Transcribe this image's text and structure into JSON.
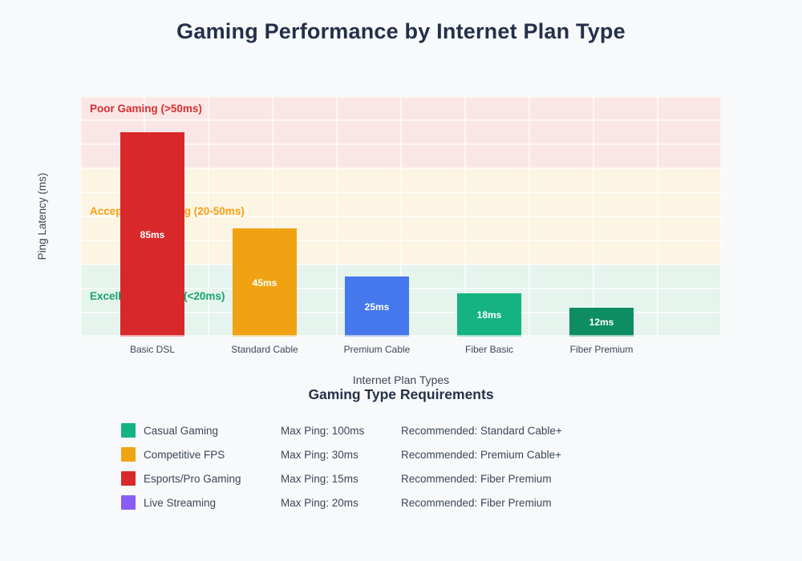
{
  "page": {
    "background_color": "#f8f9fb",
    "title_color": "#243049"
  },
  "chart_data": {
    "type": "bar",
    "title": "Gaming Performance by Internet Plan Type",
    "xlabel": "Internet Plan Types",
    "ylabel": "Ping Latency (ms)",
    "ylim": [
      0,
      100
    ],
    "grid": true,
    "categories": [
      "Basic DSL",
      "Standard Cable",
      "Premium Cable",
      "Fiber Basic",
      "Fiber Premium"
    ],
    "values": [
      85,
      45,
      25,
      18,
      12
    ],
    "bar_labels": [
      "85ms",
      "45ms",
      "25ms",
      "18ms",
      "12ms"
    ],
    "bar_colors": [
      "#d8282a",
      "#f0a312",
      "#4478ec",
      "#14b381",
      "#0e8c62"
    ],
    "zones": [
      {
        "label": "Poor Gaming (>50ms)",
        "bg_color": "#fbe6e6",
        "text_color": "#d63031",
        "height_frac": 0.3
      },
      {
        "label": "Acceptable Gaming (20-50ms)",
        "bg_color": "#fdf5e3",
        "text_color": "#f5a117",
        "height_frac": 0.4
      },
      {
        "label": "Excellent Gaming (<20ms)",
        "bg_color": "#e5f4ed",
        "text_color": "#17a36b",
        "height_frac": 0.3
      }
    ]
  },
  "legend": {
    "title": "Gaming Type Requirements",
    "rows": [
      {
        "swatch_color": "#14b381",
        "name": "Casual Gaming",
        "max_ping": "Max Ping: 100ms",
        "recommended": "Recommended: Standard Cable+"
      },
      {
        "swatch_color": "#f0a312",
        "name": "Competitive FPS",
        "max_ping": "Max Ping: 30ms",
        "recommended": "Recommended: Premium Cable+"
      },
      {
        "swatch_color": "#d8282a",
        "name": "Esports/Pro Gaming",
        "max_ping": "Max Ping: 15ms",
        "recommended": "Recommended: Fiber Premium"
      },
      {
        "swatch_color": "#8a5cf6",
        "name": "Live Streaming",
        "max_ping": "Max Ping: 20ms",
        "recommended": "Recommended: Fiber Premium"
      }
    ]
  }
}
